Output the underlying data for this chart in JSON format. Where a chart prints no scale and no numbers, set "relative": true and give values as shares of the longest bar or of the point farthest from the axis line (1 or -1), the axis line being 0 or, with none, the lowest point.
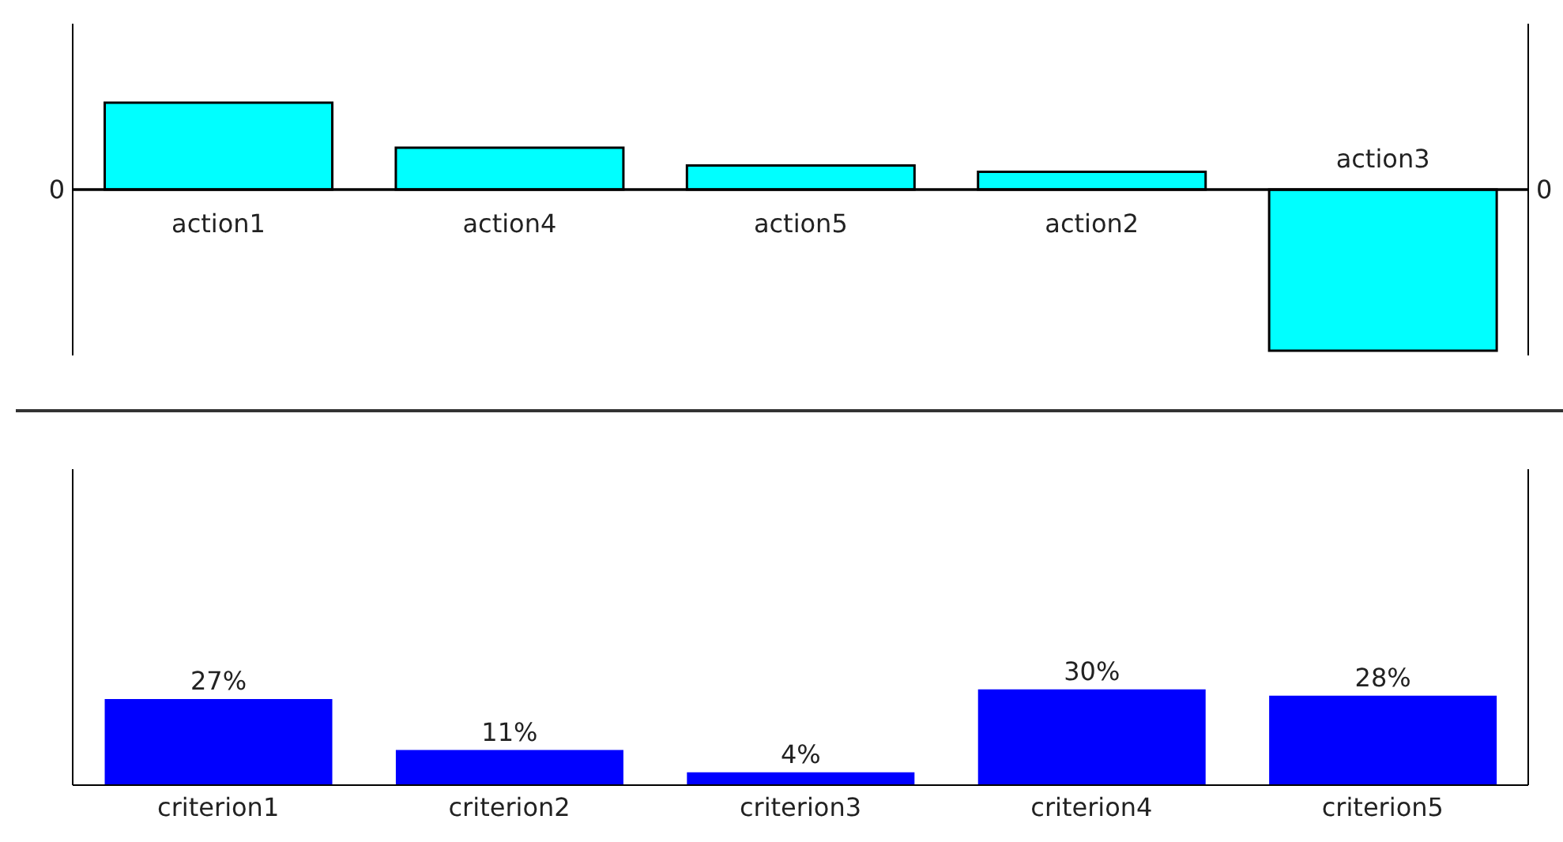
{
  "chart_data": [
    {
      "type": "bar",
      "categories": [
        "action1",
        "action4",
        "action5",
        "action2",
        "action3"
      ],
      "values": [
        0.54,
        0.26,
        0.15,
        0.11,
        -1
      ],
      "color": "#00ffff",
      "relative": true,
      "annotations": [
        "0",
        "0"
      ]
    },
    {
      "type": "bar",
      "categories": [
        "criterion1",
        "criterion2",
        "criterion3",
        "criterion4",
        "criterion5"
      ],
      "values": [
        27,
        11,
        4,
        30,
        28
      ],
      "value_labels": [
        "27%",
        "11%",
        "4%",
        "30%",
        "28%"
      ],
      "color": "#0000ff",
      "data_labels": true
    }
  ]
}
